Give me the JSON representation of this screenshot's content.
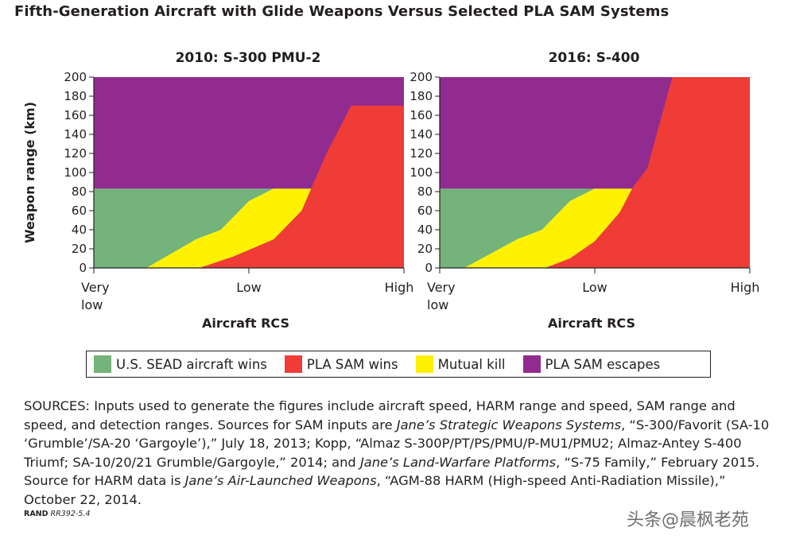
{
  "title": "Fifth-Generation Aircraft with Glide Weapons Versus Selected PLA SAM Systems",
  "colors": {
    "sead": "#74b37a",
    "sam_wins": "#ef3c36",
    "mutual_kill": "#fff200",
    "sam_escapes": "#922b8f"
  },
  "legend": [
    {
      "label": "U.S. SEAD aircraft wins",
      "color": "#74b37a"
    },
    {
      "label": "PLA SAM wins",
      "color": "#ef3c36"
    },
    {
      "label": "Mutual kill",
      "color": "#fff200"
    },
    {
      "label": "PLA SAM escapes",
      "color": "#922b8f"
    }
  ],
  "chart_data": [
    {
      "type": "area",
      "title": "2010: S-300 PMU-2",
      "xlabel": "Aircraft RCS",
      "ylabel": "Weapon range (km)",
      "x_ticks": [
        "Very low",
        "Low",
        "High"
      ],
      "x_range": [
        0,
        1
      ],
      "ylim": [
        0,
        200
      ],
      "y_ticks": [
        0,
        20,
        40,
        60,
        80,
        100,
        120,
        140,
        160,
        180,
        200
      ],
      "regions": [
        {
          "name": "PLA SAM escapes",
          "color": "#922b8f",
          "points": [
            [
              0,
              200
            ],
            [
              1,
              200
            ],
            [
              1,
              83
            ],
            [
              0,
              83
            ]
          ]
        },
        {
          "name": "U.S. SEAD aircraft wins",
          "color": "#74b37a",
          "points": [
            [
              0,
              0
            ],
            [
              0.17,
              0
            ],
            [
              0.33,
              30
            ],
            [
              0.41,
              40
            ],
            [
              0.5,
              70
            ],
            [
              0.58,
              83
            ],
            [
              0,
              83
            ]
          ]
        },
        {
          "name": "Mutual kill",
          "color": "#fff200",
          "points": [
            [
              0.17,
              0
            ],
            [
              0.34,
              0
            ],
            [
              0.45,
              12
            ],
            [
              0.58,
              30
            ],
            [
              0.67,
              60
            ],
            [
              0.73,
              83
            ],
            [
              0.58,
              83
            ],
            [
              0.5,
              70
            ],
            [
              0.41,
              40
            ],
            [
              0.33,
              30
            ]
          ]
        },
        {
          "name": "PLA SAM wins",
          "color": "#ef3c36",
          "points": [
            [
              0.34,
              0
            ],
            [
              1,
              0
            ],
            [
              1,
              170
            ],
            [
              0.83,
              170
            ],
            [
              0.75,
              120
            ],
            [
              0.67,
              60
            ],
            [
              0.58,
              30
            ],
            [
              0.45,
              12
            ]
          ]
        }
      ]
    },
    {
      "type": "area",
      "title": "2016: S-400",
      "xlabel": "Aircraft RCS",
      "ylabel": "",
      "x_ticks": [
        "Very low",
        "Low",
        "High"
      ],
      "x_range": [
        0,
        1
      ],
      "ylim": [
        0,
        200
      ],
      "y_ticks": [
        0,
        20,
        40,
        60,
        80,
        100,
        120,
        140,
        160,
        180,
        200
      ],
      "regions": [
        {
          "name": "PLA SAM escapes",
          "color": "#922b8f",
          "points": [
            [
              0,
              200
            ],
            [
              1,
              200
            ],
            [
              1,
              83
            ],
            [
              0,
              83
            ]
          ]
        },
        {
          "name": "U.S. SEAD aircraft wins",
          "color": "#74b37a",
          "points": [
            [
              0,
              0
            ],
            [
              0.08,
              0
            ],
            [
              0.25,
              30
            ],
            [
              0.33,
              40
            ],
            [
              0.42,
              70
            ],
            [
              0.5,
              83
            ],
            [
              0,
              83
            ]
          ]
        },
        {
          "name": "Mutual kill",
          "color": "#fff200",
          "points": [
            [
              0.08,
              0
            ],
            [
              0.34,
              0
            ],
            [
              0.42,
              10
            ],
            [
              0.5,
              28
            ],
            [
              0.58,
              58
            ],
            [
              0.62,
              83
            ],
            [
              0.5,
              83
            ],
            [
              0.42,
              70
            ],
            [
              0.33,
              40
            ],
            [
              0.25,
              30
            ]
          ]
        },
        {
          "name": "PLA SAM wins",
          "color": "#ef3c36",
          "points": [
            [
              0.34,
              0
            ],
            [
              1,
              0
            ],
            [
              1,
              200
            ],
            [
              0.75,
              200
            ],
            [
              0.67,
              105
            ],
            [
              0.62,
              83
            ],
            [
              0.58,
              58
            ],
            [
              0.5,
              28
            ],
            [
              0.42,
              10
            ]
          ]
        }
      ]
    }
  ],
  "sources": {
    "p1": "SOURCES: Inputs used to generate the figures include aircraft speed, HARM range and speed, SAM range and speed, and detection ranges. Sources for SAM inputs are ",
    "i1": "Jane’s Strategic Weapons Systems",
    "p2": ", “S-300/Favorit (SA-10 ‘Grumble’/SA-20 ‘Gargoyle’),” July 18, 2013; Kopp, “Almaz S-300P/PT/PS/PMU/P-MU1/PMU2; Almaz-Antey S-400 Triumf; SA-10/20/21 Grumble/Gargoyle,” 2014; and ",
    "i2": "Jane’s Land-Warfare Platforms",
    "p3": ", “S-75 Family,” February 2015. Source for HARM data is ",
    "i3": "Jane’s Air-Launched Weapons",
    "p4": ", “AGM-88 HARM (High-speed Anti-Radiation Missile),” October 22, 2014."
  },
  "footer": {
    "org": "RAND",
    "id": "RR392-5.4"
  },
  "watermark": "头条@晨枫老苑"
}
